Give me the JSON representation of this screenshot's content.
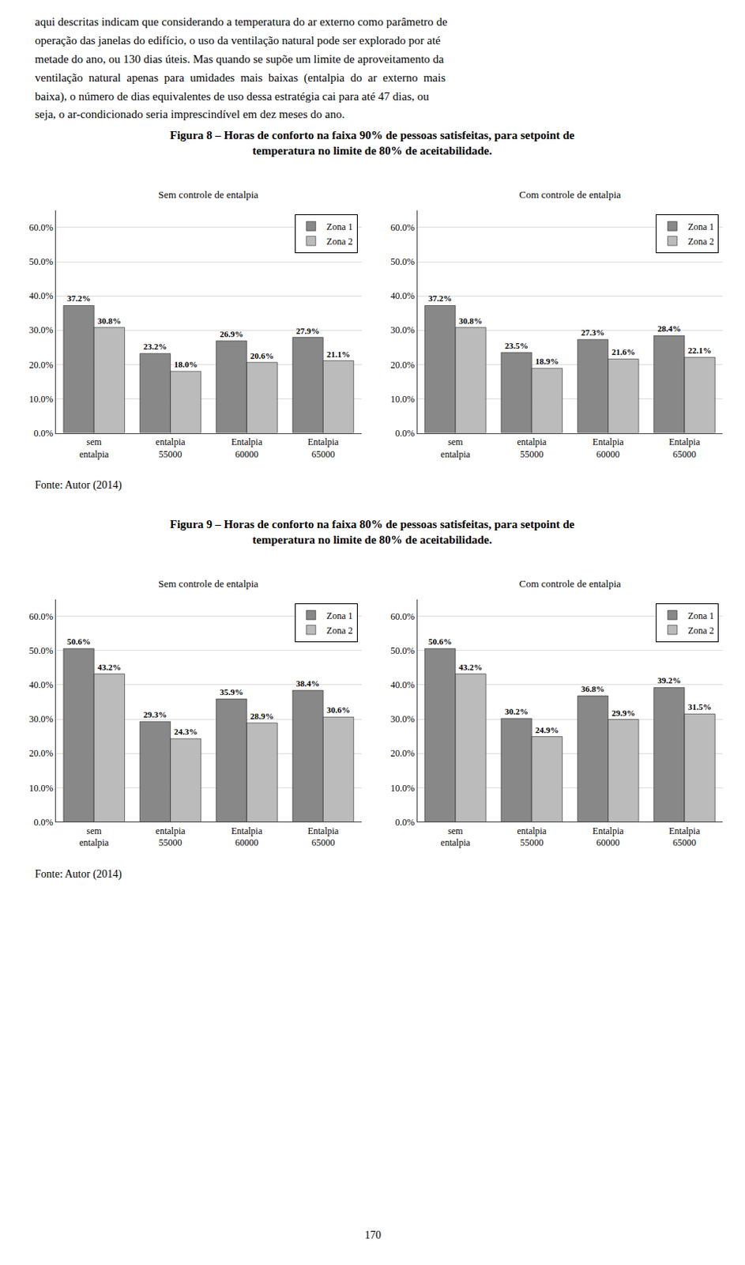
{
  "chart_data": [
    {
      "type": "bar",
      "title": "Figura 8 – Horas de conforto na faixa 90% de pessoas satisfeitas, para setpoint de\ntemperatura no limite de 80% de aceitabilidade.",
      "subtitle": "Sem controle de entalpia",
      "annotations": [
        "aqui descritas indicam que considerando a temperatura do ar externo como parâmetro de",
        "operação das janelas do edifício, o uso da ventilação natural pode ser explorado por até",
        "metade do ano, ou 130 dias úteis. Mas quando se supõe um limite de aproveitamento da",
        "ventilação  natural  apenas  para  umidades  mais  baixas  (entalpia  do  ar  externo  mais",
        "baixa), o número de dias equivalentes de uso dessa estratégia cai para até 47 dias, ou",
        "seja, o ar-condicionado seria imprescindível em dez meses do ano."
      ],
      "categories": [
        "sem\nentalpia",
        "entalpia\n55000",
        "Entalpia\n60000",
        "Entalpia\n65000"
      ],
      "series": [
        {
          "name": "Zona 1",
          "color": "#888888",
          "values": [
            37.2,
            23.2,
            26.9,
            27.9
          ],
          "value_labels": [
            "37.2%",
            "23.2%",
            "26.9%",
            "27.9%"
          ]
        },
        {
          "name": "Zona 2",
          "color": "#bbbbbb",
          "values": [
            30.8,
            18.0,
            20.6,
            21.1
          ],
          "value_labels": [
            "30.8%",
            "18.0%",
            "20.6%",
            "21.1%"
          ]
        }
      ],
      "ylim": [
        0,
        65
      ],
      "yticks": [
        {
          "value": 0,
          "label": "0.0%"
        },
        {
          "value": 10,
          "label": "10.0%"
        },
        {
          "value": 20,
          "label": "20.0%"
        },
        {
          "value": 30,
          "label": "30.0%"
        },
        {
          "value": 40,
          "label": "40.0%"
        },
        {
          "value": 50,
          "label": "50.0%"
        },
        {
          "value": 60,
          "label": "60.0%"
        }
      ],
      "grid": true,
      "legend": "upper right",
      "data_labels": true
    },
    {
      "type": "bar",
      "subtitle": "Com controle de entalpia",
      "annotations": [
        "Fonte: Autor (2014)"
      ],
      "categories": [
        "sem\nentalpia",
        "entalpia\n55000",
        "Entalpia\n60000",
        "Entalpia\n65000"
      ],
      "series": [
        {
          "name": "Zona 1",
          "color": "#888888",
          "values": [
            37.2,
            23.5,
            27.3,
            28.4
          ],
          "value_labels": [
            "37.2%",
            "23.5%",
            "27.3%",
            "28.4%"
          ]
        },
        {
          "name": "Zona 2",
          "color": "#bbbbbb",
          "values": [
            30.8,
            18.9,
            21.6,
            22.1
          ],
          "value_labels": [
            "30.8%",
            "18.9%",
            "21.6%",
            "22.1%"
          ]
        }
      ],
      "ylim": [
        0,
        65
      ],
      "yticks": [
        {
          "value": 0,
          "label": "0.0%"
        },
        {
          "value": 10,
          "label": "10.0%"
        },
        {
          "value": 20,
          "label": "20.0%"
        },
        {
          "value": 30,
          "label": "30.0%"
        },
        {
          "value": 40,
          "label": "40.0%"
        },
        {
          "value": 50,
          "label": "50.0%"
        },
        {
          "value": 60,
          "label": "60.0%"
        }
      ],
      "grid": true,
      "legend": "upper right",
      "data_labels": true
    },
    {
      "type": "bar",
      "title": "Figura 9 – Horas de conforto na faixa 80% de pessoas satisfeitas, para setpoint de\ntemperatura no limite de 80% de aceitabilidade.",
      "subtitle": "Sem controle de entalpia",
      "categories": [
        "sem\nentalpia",
        "entalpia\n55000",
        "Entalpia\n60000",
        "Entalpia\n65000"
      ],
      "series": [
        {
          "name": "Zona 1",
          "color": "#888888",
          "values": [
            50.6,
            29.3,
            35.9,
            38.4
          ],
          "value_labels": [
            "50.6%",
            "29.3%",
            "35.9%",
            "38.4%"
          ]
        },
        {
          "name": "Zona 2",
          "color": "#bbbbbb",
          "values": [
            43.2,
            24.3,
            28.9,
            30.6
          ],
          "value_labels": [
            "43.2%",
            "24.3%",
            "28.9%",
            "30.6%"
          ]
        }
      ],
      "ylim": [
        0,
        65
      ],
      "yticks": [
        {
          "value": 0,
          "label": "0.0%"
        },
        {
          "value": 10,
          "label": "10.0%"
        },
        {
          "value": 20,
          "label": "20.0%"
        },
        {
          "value": 30,
          "label": "30.0%"
        },
        {
          "value": 40,
          "label": "40.0%"
        },
        {
          "value": 50,
          "label": "50.0%"
        },
        {
          "value": 60,
          "label": "60.0%"
        }
      ],
      "grid": true,
      "legend": "upper right",
      "data_labels": true
    },
    {
      "type": "bar",
      "subtitle": "Com controle de entalpia",
      "annotations": [
        "Fonte: Autor (2014)",
        "170"
      ],
      "categories": [
        "sem\nentalpia",
        "entalpia\n55000",
        "Entalpia\n60000",
        "Entalpia\n65000"
      ],
      "series": [
        {
          "name": "Zona 1",
          "color": "#888888",
          "values": [
            50.6,
            30.2,
            36.8,
            39.2
          ],
          "value_labels": [
            "50.6%",
            "30.2%",
            "36.8%",
            "39.2%"
          ]
        },
        {
          "name": "Zona 2",
          "color": "#bbbbbb",
          "values": [
            43.2,
            24.9,
            29.9,
            31.5
          ],
          "value_labels": [
            "43.2%",
            "24.9%",
            "29.9%",
            "31.5%"
          ]
        }
      ],
      "ylim": [
        0,
        65
      ],
      "yticks": [
        {
          "value": 0,
          "label": "0.0%"
        },
        {
          "value": 10,
          "label": "10.0%"
        },
        {
          "value": 20,
          "label": "20.0%"
        },
        {
          "value": 30,
          "label": "30.0%"
        },
        {
          "value": 40,
          "label": "40.0%"
        },
        {
          "value": 50,
          "label": "50.0%"
        },
        {
          "value": 60,
          "label": "60.0%"
        }
      ],
      "grid": true,
      "legend": "upper right",
      "data_labels": true
    }
  ]
}
